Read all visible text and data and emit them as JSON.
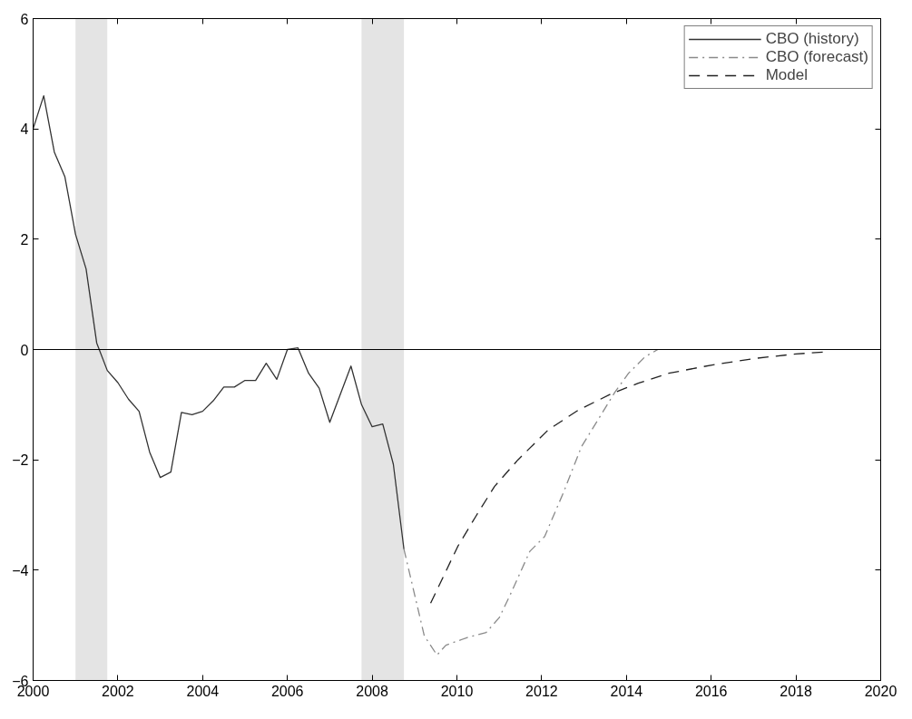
{
  "chart_data": {
    "type": "line",
    "xlim": [
      2000,
      2020
    ],
    "ylim": [
      -6,
      6
    ],
    "xticks": [
      2000,
      2002,
      2004,
      2006,
      2008,
      2010,
      2012,
      2014,
      2016,
      2018,
      2020
    ],
    "yticks": [
      -6,
      -4,
      -2,
      0,
      2,
      4,
      6
    ],
    "grid": false,
    "legend": "top right",
    "ref_lines": [
      {
        "axis": "y",
        "value": 0,
        "color": "#000000"
      }
    ],
    "bands": [
      {
        "axis": "x",
        "from": 2001.0,
        "to": 2001.75,
        "color": "#e4e4e4"
      },
      {
        "axis": "x",
        "from": 2007.75,
        "to": 2008.75,
        "color": "#e4e4e4"
      }
    ],
    "series": [
      {
        "name": "CBO (history)",
        "color": "#333333",
        "line_style": "solid",
        "x": [
          2000.0,
          2000.25,
          2000.5,
          2000.75,
          2001.0,
          2001.25,
          2001.5,
          2001.75,
          2002.0,
          2002.25,
          2002.5,
          2002.75,
          2003.0,
          2003.25,
          2003.5,
          2003.75,
          2004.0,
          2004.25,
          2004.5,
          2004.75,
          2005.0,
          2005.25,
          2005.5,
          2005.75,
          2006.0,
          2006.25,
          2006.5,
          2006.75,
          2007.0,
          2007.5,
          2007.75,
          2008.0,
          2008.25,
          2008.5,
          2008.75
        ],
        "values": [
          4.0,
          4.6,
          3.58,
          3.13,
          2.09,
          1.46,
          0.12,
          -0.38,
          -0.6,
          -0.9,
          -1.12,
          -1.86,
          -2.32,
          -2.22,
          -1.14,
          -1.18,
          -1.12,
          -0.93,
          -0.68,
          -0.68,
          -0.56,
          -0.56,
          -0.25,
          -0.54,
          0.0,
          0.03,
          -0.43,
          -0.7,
          -1.32,
          -0.3,
          -1.0,
          -1.4,
          -1.35,
          -2.08,
          -3.62
        ]
      },
      {
        "name": "CBO (forecast)",
        "color": "#8a8a8a",
        "line_style": "dashdot",
        "x": [
          2008.75,
          2009.23,
          2009.53,
          2009.74,
          2010.25,
          2010.69,
          2011.0,
          2011.28,
          2011.72,
          2012.07,
          2012.51,
          2012.94,
          2013.42,
          2013.73,
          2014.05,
          2014.44,
          2014.74
        ],
        "values": [
          -3.62,
          -5.19,
          -5.54,
          -5.36,
          -5.22,
          -5.13,
          -4.86,
          -4.41,
          -3.66,
          -3.39,
          -2.6,
          -1.76,
          -1.16,
          -0.77,
          -0.43,
          -0.13,
          0.0
        ]
      },
      {
        "name": "Model",
        "color": "#222222",
        "line_style": "dashed",
        "x": [
          2009.38,
          2010.02,
          2010.45,
          2010.89,
          2011.44,
          2012.15,
          2012.86,
          2013.65,
          2014.28,
          2015.0,
          2016.02,
          2017.05,
          2018.0,
          2018.79
        ],
        "values": [
          -4.6,
          -3.57,
          -3.02,
          -2.48,
          -2.0,
          -1.46,
          -1.1,
          -0.8,
          -0.61,
          -0.43,
          -0.28,
          -0.16,
          -0.08,
          -0.04
        ]
      }
    ]
  }
}
